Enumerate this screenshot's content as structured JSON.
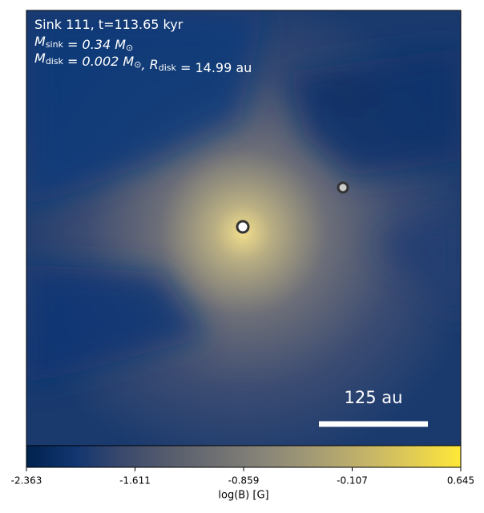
{
  "chart_data": {
    "type": "heatmap",
    "annotation_lines": [
      [
        {
          "text": "Sink 111, t=113.65 kyr"
        }
      ],
      [
        {
          "text": "M",
          "sub": "sink"
        },
        {
          "text": " = 0.34 M"
        },
        {
          "text": "",
          "sub": "⊙"
        }
      ],
      [
        {
          "text": "M",
          "sub": "disk"
        },
        {
          "text": " = 0.002 M"
        },
        {
          "text": "",
          "sub": "⊙"
        },
        {
          "text": ", R"
        },
        {
          "text": "",
          "sub": "disk"
        },
        {
          "text": " = 14.99 au"
        }
      ]
    ],
    "scale_bar_label": "125 au",
    "colormap": "cividis",
    "clim": [
      -2.363,
      0.645
    ],
    "cticks": [
      -2.363,
      -1.611,
      -0.859,
      -0.107,
      0.645
    ],
    "colorbar_label": "log(B) [G]"
  }
}
